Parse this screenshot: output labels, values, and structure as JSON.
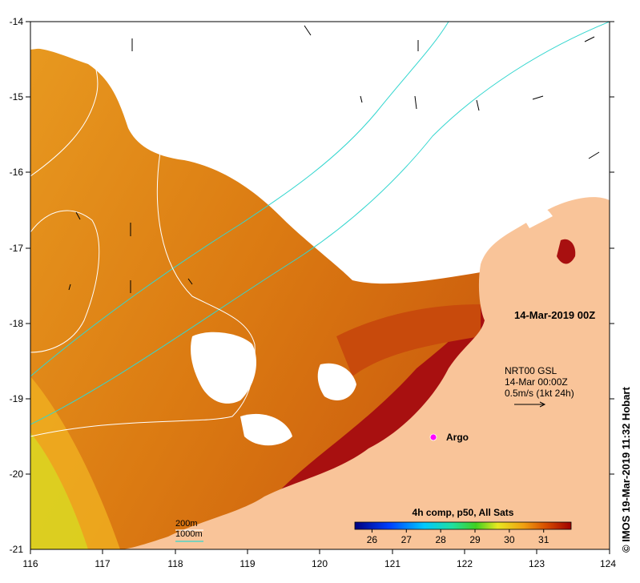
{
  "map": {
    "date_label": "14-Mar-2019 00Z",
    "product": {
      "line1": "NRT00 GSL",
      "line2": "14-Mar 00:00Z",
      "line3": "0.5m/s (1kt 24h)"
    },
    "argo_label": "Argo",
    "legend": {
      "title": "4h comp, p50, All Sats",
      "ticks": [
        "26",
        "27",
        "28",
        "29",
        "30",
        "31"
      ],
      "min": 25.5,
      "max": 31.8
    },
    "contours": {
      "label_200m": "200m",
      "label_1000m": "1000m",
      "color_200m": "#ffffff",
      "color_1000m": "#33d6cf"
    },
    "credit": "© IMOS 19-Mar-2019 11:32 Hobart",
    "x_ticks": [
      "116",
      "117",
      "118",
      "119",
      "120",
      "121",
      "122",
      "123",
      "124"
    ],
    "y_ticks": [
      "-14",
      "-15",
      "-16",
      "-17",
      "-18",
      "-19",
      "-20",
      "-21"
    ],
    "colors": {
      "land": "#f9c499",
      "sst_warm": "#a50f0f",
      "sst_mid": "#db6c10",
      "sst_cool": "#d7e11a",
      "argo": "#ff00ff"
    }
  }
}
